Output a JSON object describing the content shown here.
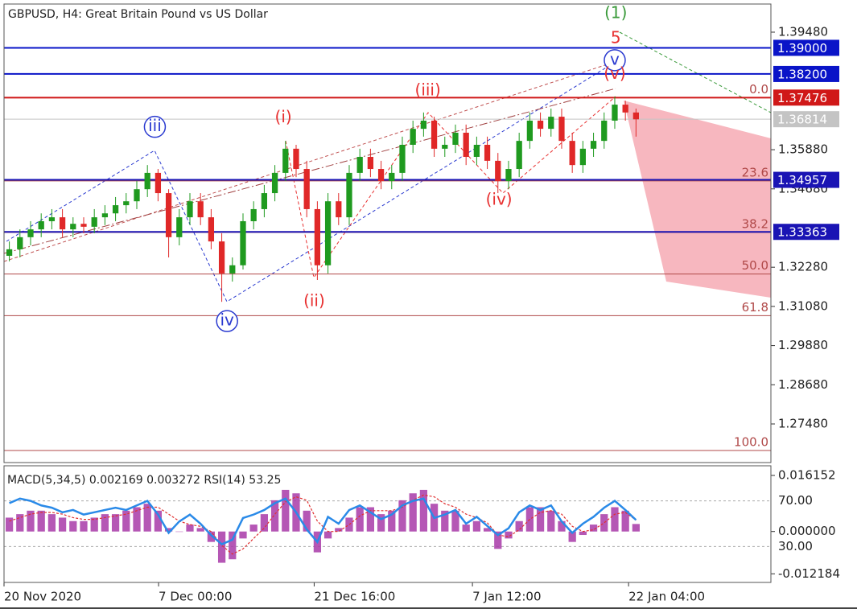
{
  "chart_data": [
    {
      "type": "candlestick",
      "title": "GBPUSD, H4:  Great Britain Pound vs US Dollar",
      "up_color": "#1f9a1f",
      "down_color": "#e02828",
      "candles": [
        [
          1.3263,
          1.3307,
          1.3246,
          1.3283
        ],
        [
          1.3283,
          1.3344,
          1.3258,
          1.332
        ],
        [
          1.332,
          1.3369,
          1.3295,
          1.3344
        ],
        [
          1.3344,
          1.3393,
          1.332,
          1.3369
        ],
        [
          1.3369,
          1.3406,
          1.3344,
          1.3381
        ],
        [
          1.3381,
          1.3406,
          1.332,
          1.3344
        ],
        [
          1.3344,
          1.3381,
          1.332,
          1.3361
        ],
        [
          1.3361,
          1.3381,
          1.3332,
          1.3352
        ],
        [
          1.3352,
          1.3406,
          1.3332,
          1.3381
        ],
        [
          1.3381,
          1.3418,
          1.3357,
          1.3393
        ],
        [
          1.3393,
          1.3443,
          1.3369,
          1.3418
        ],
        [
          1.3418,
          1.3455,
          1.3393,
          1.343
        ],
        [
          1.343,
          1.3492,
          1.3406,
          1.3467
        ],
        [
          1.3467,
          1.3541,
          1.3443,
          1.3517
        ],
        [
          1.3517,
          1.3529,
          1.343,
          1.3455
        ],
        [
          1.3455,
          1.3467,
          1.3258,
          1.332
        ],
        [
          1.332,
          1.3406,
          1.3295,
          1.3381
        ],
        [
          1.3381,
          1.3455,
          1.3357,
          1.343
        ],
        [
          1.343,
          1.3455,
          1.3357,
          1.3381
        ],
        [
          1.3381,
          1.3406,
          1.3283,
          1.3307
        ],
        [
          1.3307,
          1.3332,
          1.3122,
          1.3209
        ],
        [
          1.3209,
          1.3258,
          1.3184,
          1.3234
        ],
        [
          1.3234,
          1.3393,
          1.3221,
          1.3369
        ],
        [
          1.3369,
          1.343,
          1.3344,
          1.3406
        ],
        [
          1.3406,
          1.348,
          1.3381,
          1.3455
        ],
        [
          1.3455,
          1.3541,
          1.343,
          1.3517
        ],
        [
          1.3517,
          1.3615,
          1.3492,
          1.3591
        ],
        [
          1.3591,
          1.3603,
          1.3504,
          1.3529
        ],
        [
          1.3529,
          1.3554,
          1.3381,
          1.3406
        ],
        [
          1.3406,
          1.343,
          1.3189,
          1.3234
        ],
        [
          1.3234,
          1.3455,
          1.3209,
          1.343
        ],
        [
          1.343,
          1.3455,
          1.3357,
          1.3381
        ],
        [
          1.3381,
          1.3541,
          1.3357,
          1.3517
        ],
        [
          1.3517,
          1.3591,
          1.3492,
          1.3566
        ],
        [
          1.3566,
          1.3591,
          1.3504,
          1.3529
        ],
        [
          1.3529,
          1.3554,
          1.3467,
          1.3492
        ],
        [
          1.3492,
          1.3541,
          1.3467,
          1.3517
        ],
        [
          1.3517,
          1.3628,
          1.3492,
          1.3603
        ],
        [
          1.3603,
          1.3677,
          1.3578,
          1.3652
        ],
        [
          1.3652,
          1.3702,
          1.3628,
          1.3677
        ],
        [
          1.3677,
          1.3689,
          1.3566,
          1.3591
        ],
        [
          1.3591,
          1.3628,
          1.3566,
          1.3603
        ],
        [
          1.3603,
          1.3665,
          1.3578,
          1.364
        ],
        [
          1.364,
          1.3665,
          1.3541,
          1.3566
        ],
        [
          1.3566,
          1.3628,
          1.3541,
          1.3603
        ],
        [
          1.3603,
          1.3628,
          1.3529,
          1.3554
        ],
        [
          1.3554,
          1.3578,
          1.3455,
          1.3492
        ],
        [
          1.3492,
          1.3554,
          1.3467,
          1.3529
        ],
        [
          1.3529,
          1.364,
          1.3504,
          1.3615
        ],
        [
          1.3615,
          1.3702,
          1.3591,
          1.3677
        ],
        [
          1.3677,
          1.3702,
          1.3628,
          1.3652
        ],
        [
          1.3652,
          1.3714,
          1.3628,
          1.3689
        ],
        [
          1.3689,
          1.3714,
          1.3591,
          1.3615
        ],
        [
          1.3615,
          1.364,
          1.3517,
          1.3541
        ],
        [
          1.3541,
          1.3615,
          1.3517,
          1.3591
        ],
        [
          1.3591,
          1.364,
          1.3566,
          1.3615
        ],
        [
          1.3615,
          1.3702,
          1.3591,
          1.3677
        ],
        [
          1.3677,
          1.3751,
          1.3652,
          1.3726
        ],
        [
          1.3726,
          1.3738,
          1.3677,
          1.3702
        ],
        [
          1.3702,
          1.3714,
          1.3628,
          1.3681
        ]
      ],
      "xlim": [
        -0.5,
        71.7
      ],
      "xticks": [
        {
          "value": -0.5,
          "label": "20 Nov 2020"
        },
        {
          "value": 14.05,
          "label": "7 Dec 00:00"
        },
        {
          "value": 28.7,
          "label": "21 Dec 16:00"
        },
        {
          "value": 43.6,
          "label": "7 Jan 12:00"
        },
        {
          "value": 58.3,
          "label": "22 Jan 04:00"
        }
      ],
      "ylim": [
        1.26297,
        1.40342
      ],
      "yticks": [
        {
          "value": 1.3948,
          "label": "1.39480"
        },
        {
          "value": 1.3588,
          "label": "1.35880"
        },
        {
          "value": 1.3468,
          "label": "1.34680"
        },
        {
          "value": 1.3228,
          "label": "1.32280"
        },
        {
          "value": 1.3108,
          "label": "1.31080"
        },
        {
          "value": 1.2988,
          "label": "1.29880"
        },
        {
          "value": 1.2868,
          "label": "1.28680"
        },
        {
          "value": 1.2748,
          "label": "1.27480"
        }
      ],
      "levels": [
        {
          "value": 1.39,
          "label": "1.39000",
          "color": "#0a14c8"
        },
        {
          "value": 1.382,
          "label": "1.38200",
          "color": "#0a14c8"
        },
        {
          "value": 1.37476,
          "label": "1.37476",
          "color": "#d01818"
        },
        {
          "value": 1.34957,
          "label": "1.34957",
          "color": "#1a14b4"
        },
        {
          "value": 1.33363,
          "label": "1.33363",
          "color": "#1a14b4"
        }
      ],
      "current_price": {
        "value": 1.36814,
        "label": "1.36814",
        "color": "#c4c4c4"
      },
      "fibonacci": {
        "price_0": 1.37476,
        "price_100": 1.26667,
        "color": "#b04848",
        "levels": [
          {
            "value": 0,
            "label": "0.0"
          },
          {
            "value": 23.6,
            "label": "23.6"
          },
          {
            "value": 38.2,
            "label": "38.2"
          },
          {
            "value": 50,
            "label": "50.0"
          },
          {
            "value": 61.8,
            "label": "61.8"
          },
          {
            "value": 100,
            "label": "100.0"
          }
        ]
      },
      "annotations": [
        {
          "text": "(1)",
          "x": 57.1,
          "y": 1.4005,
          "color": "#3a9a3a",
          "circled": false
        },
        {
          "text": "5",
          "x": 57.1,
          "y": 1.3928,
          "color": "#e83030",
          "circled": false
        },
        {
          "text": "v",
          "x": 57.0,
          "y": 1.3862,
          "color": "#2a3ad0",
          "circled": true
        },
        {
          "text": "(v)",
          "x": 57.0,
          "y": 1.3818,
          "color": "#e83030",
          "circled": false
        },
        {
          "text": "(iii)",
          "x": 39.4,
          "y": 1.3768,
          "color": "#e83030",
          "circled": false
        },
        {
          "text": "iii",
          "x": 13.7,
          "y": 1.3658,
          "color": "#2a3ad0",
          "circled": true
        },
        {
          "text": "(i)",
          "x": 25.8,
          "y": 1.3685,
          "color": "#e83030",
          "circled": false
        },
        {
          "text": "(iv)",
          "x": 46.1,
          "y": 1.3433,
          "color": "#e83030",
          "circled": false
        },
        {
          "text": "(ii)",
          "x": 28.7,
          "y": 1.3122,
          "color": "#e83030",
          "circled": false
        },
        {
          "text": "iv",
          "x": 20.5,
          "y": 1.3063,
          "color": "#2a3ad0",
          "circled": true
        }
      ]
    },
    {
      "type": "indicator",
      "title": "MACD(5,34,5) 0.002169 0.003272 RSI(14) 53.25",
      "macd": {
        "color": "#a83aa8",
        "values": [
          0.004,
          0.005,
          0.006,
          0.006,
          0.005,
          0.004,
          0.003,
          0.003,
          0.004,
          0.005,
          0.005,
          0.006,
          0.007,
          0.008,
          0.006,
          0.001,
          0,
          0.002,
          0.001,
          -0.003,
          -0.009,
          -0.008,
          -0.002,
          0.002,
          0.005,
          0.009,
          0.012,
          0.011,
          0.006,
          -0.006,
          -0.002,
          0.001,
          0.004,
          0.007,
          0.007,
          0.005,
          0.006,
          0.009,
          0.011,
          0.012,
          0.008,
          0.006,
          0.006,
          0.002,
          0.003,
          0.001,
          -0.005,
          -0.002,
          0.003,
          0.007,
          0.007,
          0.006,
          0.003,
          -0.003,
          -0.001,
          0.002,
          0.005,
          0.007,
          0.006,
          0.002169
        ]
      },
      "signal": {
        "color": "#e03030",
        "values": [
          0.003,
          0.004,
          0.005,
          0.0055,
          0.0055,
          0.005,
          0.004,
          0.0035,
          0.0035,
          0.004,
          0.0045,
          0.005,
          0.006,
          0.007,
          0.007,
          0.005,
          0.003,
          0.002,
          0.0015,
          0,
          -0.004,
          -0.0065,
          -0.005,
          -0.002,
          0.001,
          0.005,
          0.0085,
          0.01,
          0.009,
          0.003,
          0,
          0,
          0.002,
          0.0045,
          0.006,
          0.006,
          0.006,
          0.007,
          0.009,
          0.0105,
          0.01,
          0.008,
          0.007,
          0.005,
          0.004,
          0.0025,
          -0.001,
          -0.0015,
          0.0005,
          0.0035,
          0.0055,
          0.006,
          0.005,
          0.0015,
          0,
          0.0005,
          0.0025,
          0.005,
          0.0055,
          0.003272
        ]
      },
      "rsi": {
        "color": "#2a8ae8",
        "values": [
          68,
          72,
          70,
          66,
          64,
          60,
          62,
          58,
          60,
          62,
          64,
          62,
          66,
          70,
          58,
          42,
          52,
          58,
          50,
          40,
          32,
          36,
          55,
          58,
          62,
          68,
          72,
          60,
          45,
          34,
          56,
          50,
          62,
          66,
          60,
          54,
          58,
          66,
          70,
          72,
          55,
          58,
          62,
          50,
          56,
          48,
          40,
          46,
          60,
          66,
          62,
          66,
          52,
          42,
          50,
          56,
          64,
          70,
          62,
          53.25
        ]
      },
      "ylim": [
        -0.0142,
        0.0187
      ],
      "yticks": [
        {
          "value": 0.016152,
          "label": "0.016152"
        },
        {
          "value": 0,
          "label": "0.000000"
        },
        {
          "value": -0.012184,
          "label": "-0.012184"
        }
      ],
      "rsi_ylim": [
        0,
        100
      ],
      "rsi_ticks": [
        {
          "value": 70,
          "label": "70.00"
        },
        {
          "value": 30,
          "label": "30.00"
        }
      ]
    }
  ]
}
